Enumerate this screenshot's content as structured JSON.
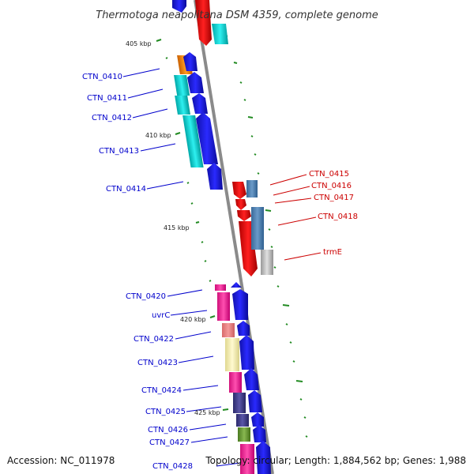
{
  "title": "Thermotoga neapolitana DSM 4359, complete genome",
  "accession_text": "Accession: NC_011978",
  "topology_text": "Topology: circular; Length: 1,884,562 bp; Genes: 1,988",
  "colors": {
    "backbone": "#808080",
    "reverse_label": "#0000cc",
    "forward_label": "#cc0000",
    "gc_ticks": "#228b22"
  },
  "kbp_labels": [
    "405 kbp",
    "410 kbp",
    "415 kbp",
    "420 kbp",
    "425 kbp"
  ],
  "genes_left": [
    "CTN_0410",
    "CTN_0411",
    "CTN_0412",
    "CTN_0413",
    "CTN_0414",
    "CTN_0420",
    "uvrC",
    "CTN_0422",
    "CTN_0423",
    "CTN_0424",
    "CTN_0425",
    "CTN_0426",
    "CTN_0427",
    "CTN_0428"
  ],
  "genes_right": [
    "CTN_0415",
    "CTN_0416",
    "CTN_0417",
    "CTN_0418",
    "trmE"
  ]
}
